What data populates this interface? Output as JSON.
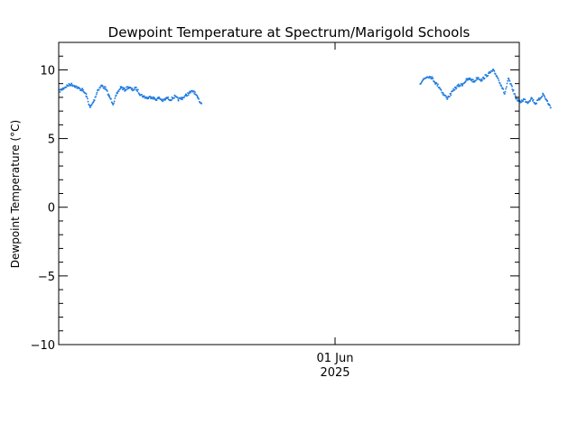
{
  "chart_data": {
    "type": "line",
    "title": "Dewpoint Temperature at Spectrum/Marigold Schools",
    "xlabel": "",
    "ylabel": "Dewpoint Temperature (°C)",
    "ylim": [
      -10,
      12
    ],
    "xlim": [
      "2025-05-29",
      "2025-06-03"
    ],
    "x_ticks": [
      {
        "date": "2025-06-01",
        "label": "01 Jun",
        "sublabel": "2025"
      }
    ],
    "y_ticks": [
      -10,
      -5,
      0,
      5,
      10
    ],
    "grid": false,
    "series": [
      {
        "color": "#1e7be0",
        "points": [
          [
            "2025-05-29T00:00",
            8.5
          ],
          [
            "2025-05-29T01:00",
            8.7
          ],
          [
            "2025-05-29T02:00",
            8.9
          ],
          [
            "2025-05-29T03:00",
            9.0
          ],
          [
            "2025-05-29T04:00",
            8.9
          ],
          [
            "2025-05-29T05:00",
            8.7
          ],
          [
            "2025-05-29T06:00",
            8.6
          ],
          [
            "2025-05-29T07:00",
            8.2
          ],
          [
            "2025-05-29T08:00",
            7.3
          ],
          [
            "2025-05-29T09:00",
            7.8
          ],
          [
            "2025-05-29T10:00",
            8.6
          ],
          [
            "2025-05-29T11:00",
            8.9
          ],
          [
            "2025-05-29T12:00",
            8.7
          ],
          [
            "2025-05-29T13:00",
            8.1
          ],
          [
            "2025-05-29T14:00",
            7.6
          ],
          [
            "2025-05-29T15:00",
            8.3
          ],
          [
            "2025-05-29T16:00",
            8.8
          ],
          [
            "2025-05-29T17:00",
            8.6
          ],
          [
            "2025-05-29T18:00",
            8.8
          ],
          [
            "2025-05-29T19:00",
            8.6
          ],
          [
            "2025-05-29T20:00",
            8.7
          ],
          [
            "2025-05-29T21:00",
            8.3
          ],
          [
            "2025-05-29T22:00",
            8.1
          ],
          [
            "2025-05-29T23:00",
            8.0
          ],
          [
            "2025-05-30T00:00",
            8.1
          ],
          [
            "2025-05-30T01:00",
            7.9
          ],
          [
            "2025-05-30T02:00",
            8.0
          ],
          [
            "2025-05-30T03:00",
            7.8
          ],
          [
            "2025-05-30T04:00",
            8.0
          ],
          [
            "2025-05-30T05:00",
            7.9
          ],
          [
            "2025-05-30T06:00",
            8.1
          ],
          [
            "2025-05-30T07:00",
            7.9
          ],
          [
            "2025-05-30T08:00",
            8.0
          ],
          [
            "2025-05-30T09:00",
            8.2
          ],
          [
            "2025-05-30T10:00",
            8.4
          ],
          [
            "2025-05-30T11:00",
            8.5
          ],
          [
            "2025-05-30T12:00",
            8.0
          ],
          [
            "2025-05-30T13:00",
            7.6
          ]
        ]
      },
      {
        "color": "#1e7be0",
        "points": [
          [
            "2025-06-01T22:00",
            9.1
          ],
          [
            "2025-06-01T23:00",
            9.4
          ],
          [
            "2025-06-02T00:00",
            9.6
          ],
          [
            "2025-06-02T01:00",
            9.5
          ],
          [
            "2025-06-02T02:00",
            9.1
          ],
          [
            "2025-06-02T03:00",
            8.8
          ],
          [
            "2025-06-02T04:00",
            8.3
          ],
          [
            "2025-06-02T05:00",
            8.0
          ],
          [
            "2025-06-02T06:00",
            8.3
          ],
          [
            "2025-06-02T07:00",
            8.7
          ],
          [
            "2025-06-02T08:00",
            8.9
          ],
          [
            "2025-06-02T09:00",
            9.0
          ],
          [
            "2025-06-02T10:00",
            9.3
          ],
          [
            "2025-06-02T11:00",
            9.4
          ],
          [
            "2025-06-02T12:00",
            9.2
          ],
          [
            "2025-06-02T13:00",
            9.5
          ],
          [
            "2025-06-02T14:00",
            9.3
          ],
          [
            "2025-06-02T15:00",
            9.6
          ],
          [
            "2025-06-02T16:00",
            9.8
          ],
          [
            "2025-06-02T17:00",
            10.0
          ],
          [
            "2025-06-02T18:00",
            9.6
          ],
          [
            "2025-06-02T19:00",
            9.0
          ],
          [
            "2025-06-02T20:00",
            8.3
          ],
          [
            "2025-06-02T21:00",
            9.4
          ],
          [
            "2025-06-02T22:00",
            8.7
          ],
          [
            "2025-06-02T23:00",
            8.0
          ],
          [
            "2025-06-03T00:00",
            7.7
          ],
          [
            "2025-06-03T01:00",
            7.9
          ],
          [
            "2025-06-03T02:00",
            7.7
          ],
          [
            "2025-06-03T03:00",
            8.0
          ],
          [
            "2025-06-03T04:00",
            7.6
          ],
          [
            "2025-06-03T05:00",
            7.9
          ],
          [
            "2025-06-03T06:00",
            8.3
          ],
          [
            "2025-06-03T07:00",
            7.8
          ],
          [
            "2025-06-03T08:00",
            7.3
          ]
        ]
      }
    ]
  }
}
